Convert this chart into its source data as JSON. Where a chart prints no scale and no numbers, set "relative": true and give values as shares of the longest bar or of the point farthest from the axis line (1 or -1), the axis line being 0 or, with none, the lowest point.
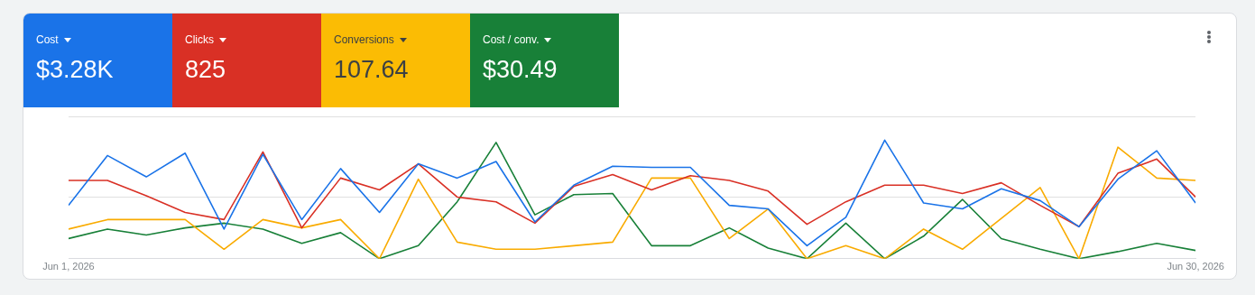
{
  "chart_data": [
    {
      "type": "other",
      "categories": [
        "Cost",
        "Clicks",
        "Conversions",
        "Cost / conv."
      ],
      "value_labels": [
        "$3.28K",
        "825",
        "107.64",
        "$30.49"
      ],
      "colors": [
        "#1a73e8",
        "#d93025",
        "#fbbc04",
        "#188038"
      ]
    },
    {
      "type": "line",
      "relative": true,
      "marker": "none",
      "line_style": "solid",
      "ref_lines": [
        {
          "axis": "y",
          "value": 0.52,
          "color": "#e0e0e0"
        }
      ],
      "x": [
        "2026-06-01",
        "2026-06-02",
        "2026-06-03",
        "2026-06-04",
        "2026-06-05",
        "2026-06-06",
        "2026-06-07",
        "2026-06-08",
        "2026-06-09",
        "2026-06-10",
        "2026-06-11",
        "2026-06-12",
        "2026-06-13",
        "2026-06-14",
        "2026-06-15",
        "2026-06-16",
        "2026-06-17",
        "2026-06-18",
        "2026-06-19",
        "2026-06-20",
        "2026-06-21",
        "2026-06-22",
        "2026-06-23",
        "2026-06-24",
        "2026-06-25",
        "2026-06-26",
        "2026-06-27",
        "2026-06-28",
        "2026-06-29",
        "2026-06-30"
      ],
      "xlim": [
        "2026-06-01",
        "2026-06-30"
      ],
      "xticks": [
        {
          "value": "2026-06-01",
          "label": "Jun 1, 2026"
        },
        {
          "value": "2026-06-30",
          "label": "Jun 30, 2026"
        }
      ],
      "series": [
        {
          "color": "#1a73e8",
          "values": [
            0.45,
            0.87,
            0.69,
            0.89,
            0.25,
            0.88,
            0.33,
            0.76,
            0.39,
            0.8,
            0.68,
            0.82,
            0.31,
            0.62,
            0.78,
            0.77,
            0.77,
            0.45,
            0.42,
            0.11,
            0.35,
            1.0,
            0.47,
            0.42,
            0.59,
            0.49,
            0.27,
            0.67,
            0.91,
            0.47
          ]
        },
        {
          "color": "#d93025",
          "values": [
            0.66,
            0.66,
            0.53,
            0.39,
            0.33,
            0.9,
            0.26,
            0.68,
            0.58,
            0.8,
            0.52,
            0.48,
            0.3,
            0.61,
            0.71,
            0.58,
            0.7,
            0.66,
            0.57,
            0.29,
            0.48,
            0.62,
            0.62,
            0.55,
            0.64,
            0.45,
            0.27,
            0.72,
            0.84,
            0.52
          ]
        },
        {
          "color": "#f9ab00",
          "values": [
            0.25,
            0.33,
            0.33,
            0.33,
            0.08,
            0.33,
            0.26,
            0.33,
            0,
            0.67,
            0.14,
            0.08,
            0.08,
            0.11,
            0.14,
            0.68,
            0.68,
            0.17,
            0.42,
            0,
            0.11,
            0,
            0.25,
            0.08,
            0.34,
            0.6,
            0,
            0.94,
            0.68,
            0.66
          ]
        },
        {
          "color": "#188038",
          "values": [
            0.17,
            0.25,
            0.2,
            0.26,
            0.3,
            0.25,
            0.13,
            0.22,
            0,
            0.11,
            0.48,
            0.98,
            0.37,
            0.54,
            0.55,
            0.11,
            0.11,
            0.26,
            0.09,
            0,
            0.3,
            0,
            0.19,
            0.5,
            0.17,
            0.08,
            0,
            0.06,
            0.13,
            0.07
          ]
        }
      ]
    }
  ]
}
